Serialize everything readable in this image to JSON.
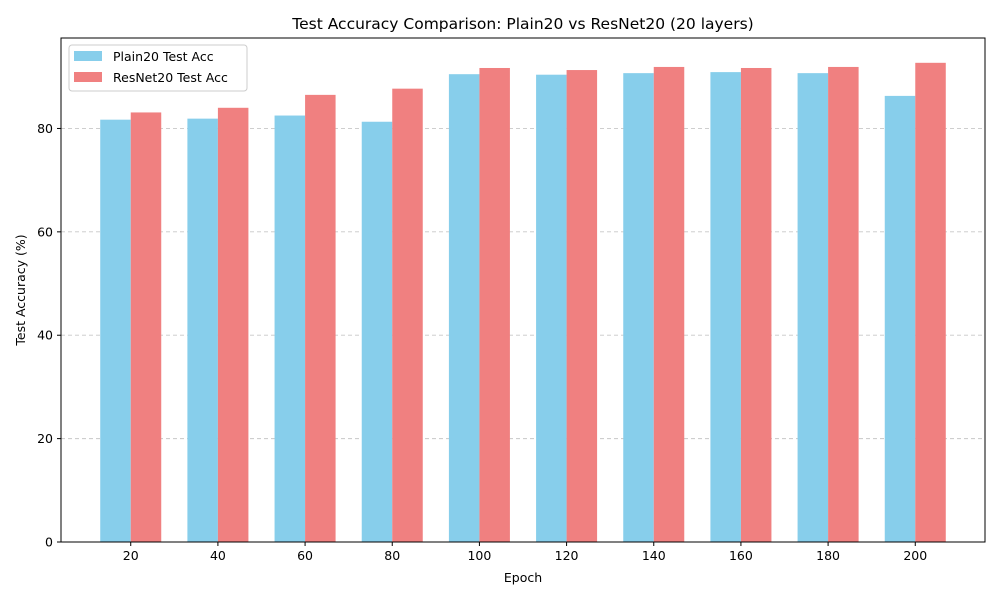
{
  "chart_data": {
    "type": "bar",
    "title": "Test Accuracy Comparison: Plain20 vs ResNet20 (20 layers)",
    "xlabel": "Epoch",
    "ylabel": "Test Accuracy (%)",
    "categories": [
      "20",
      "40",
      "60",
      "80",
      "100",
      "120",
      "140",
      "160",
      "180",
      "200"
    ],
    "ylim": [
      0,
      97.5
    ],
    "yticks": [
      "0",
      "20",
      "40",
      "60",
      "80"
    ],
    "grid": "y-dashed",
    "legend_position": "top-left",
    "series": [
      {
        "name": "Plain20 Test Acc",
        "color": "#87ceeb",
        "values": [
          81.7,
          81.9,
          82.5,
          81.3,
          90.5,
          90.4,
          90.7,
          90.9,
          90.7,
          86.3
        ]
      },
      {
        "name": "ResNet20 Test Acc",
        "color": "#f08080",
        "values": [
          83.1,
          84.0,
          86.5,
          87.7,
          91.7,
          91.3,
          91.9,
          91.7,
          91.9,
          92.7
        ]
      }
    ]
  }
}
